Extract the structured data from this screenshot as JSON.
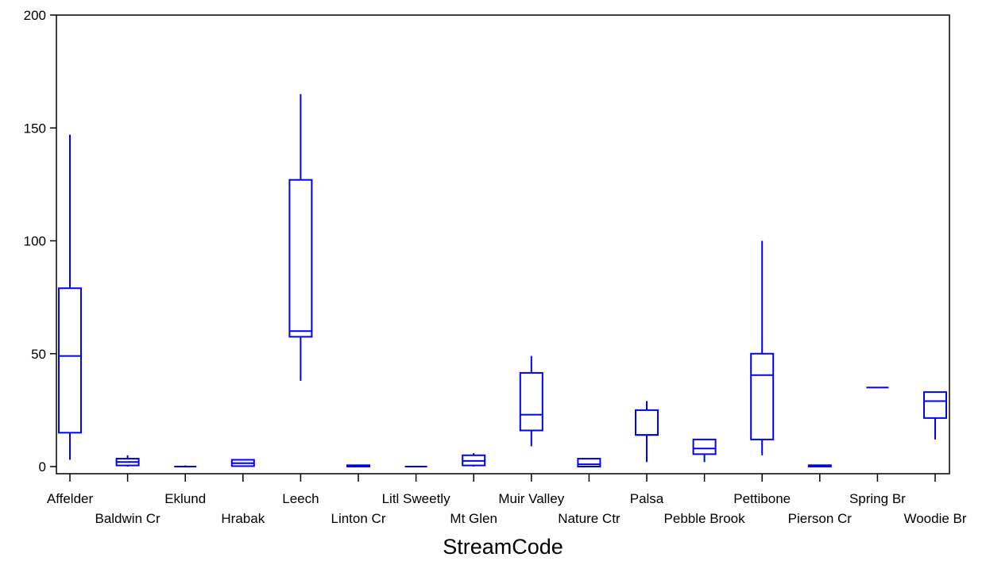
{
  "chart_data": {
    "type": "box",
    "title": "",
    "xlabel": "StreamCode",
    "ylabel": "",
    "ylim": [
      0,
      200
    ],
    "yticks": [
      0,
      50,
      100,
      150,
      200
    ],
    "grid": false,
    "legend": "none",
    "box_color": "#0000ff",
    "categories": [
      "Affelder",
      "Baldwin Cr",
      "Eklund",
      "Hrabak",
      "Leech",
      "Linton Cr",
      "Litl Sweetly",
      "Mt Glen",
      "Muir Valley",
      "Nature Ctr",
      "Palsa",
      "Pebble Brook",
      "Pettibone",
      "Pierson Cr",
      "Spring Br",
      "Woodie Br"
    ],
    "label_row": [
      0,
      1,
      0,
      1,
      0,
      1,
      0,
      1,
      0,
      1,
      0,
      1,
      0,
      1,
      0,
      1
    ],
    "boxes": [
      {
        "min": 3,
        "q1": 15,
        "median": 49,
        "q3": 79,
        "max": 147
      },
      {
        "min": 0,
        "q1": 0.5,
        "median": 2,
        "q3": 3.5,
        "max": 5
      },
      {
        "min": 0,
        "q1": 0,
        "median": 0,
        "q3": 0,
        "max": 0.5
      },
      {
        "min": 0,
        "q1": 0.2,
        "median": 1.5,
        "q3": 3,
        "max": 3
      },
      {
        "min": 38,
        "q1": 57.5,
        "median": 60,
        "q3": 127,
        "max": 165
      },
      {
        "min": 0,
        "q1": 0,
        "median": 0.3,
        "q3": 0.6,
        "max": 0.6
      },
      {
        "min": 0,
        "q1": 0,
        "median": 0,
        "q3": 0,
        "max": 0
      },
      {
        "min": 0,
        "q1": 0.5,
        "median": 2.5,
        "q3": 5,
        "max": 6
      },
      {
        "min": 9,
        "q1": 16,
        "median": 23,
        "q3": 41.5,
        "max": 49
      },
      {
        "min": 0,
        "q1": 0,
        "median": 1,
        "q3": 3.5,
        "max": 3.5
      },
      {
        "min": 2,
        "q1": 14,
        "median": 14,
        "q3": 25,
        "max": 29
      },
      {
        "min": 2,
        "q1": 5.5,
        "median": 8,
        "q3": 12,
        "max": 12
      },
      {
        "min": 5,
        "q1": 12,
        "median": 40.5,
        "q3": 50,
        "max": 100
      },
      {
        "min": 0,
        "q1": 0,
        "median": 0.3,
        "q3": 0.6,
        "max": 0.6
      },
      {
        "min": 35,
        "q1": 35,
        "median": 35,
        "q3": 35,
        "max": 35
      },
      {
        "min": 12,
        "q1": 21.5,
        "median": 29,
        "q3": 33,
        "max": 33
      }
    ]
  }
}
